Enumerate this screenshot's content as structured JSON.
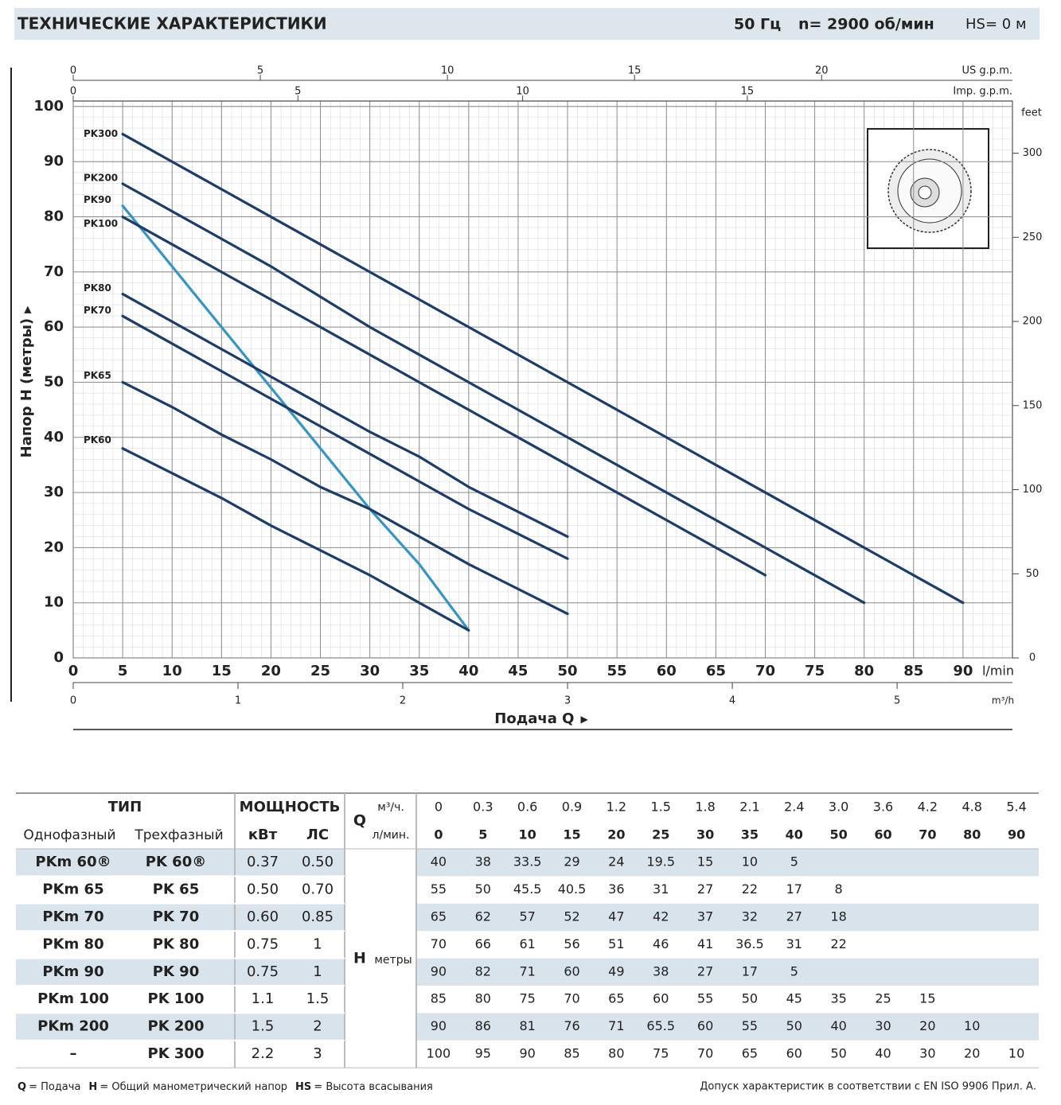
{
  "header": {
    "title": "ТЕХНИЧЕСКИЕ ХАРАКТЕРИСТИКИ",
    "frequency": "50 Гц",
    "speed": "n= 2900 об/мин",
    "suction": "HS= 0 м"
  },
  "chart_data": {
    "type": "line",
    "x": [
      5,
      10,
      15,
      20,
      25,
      30,
      35,
      40,
      50,
      60,
      70,
      80,
      90
    ],
    "xlim": [
      0,
      95
    ],
    "xticks": [
      0,
      5,
      10,
      15,
      20,
      25,
      30,
      35,
      40,
      45,
      50,
      55,
      60,
      65,
      70,
      75,
      80,
      85,
      90
    ],
    "xlabel": "l/min",
    "ylim": [
      0,
      101
    ],
    "yticks": [
      0,
      10,
      20,
      30,
      40,
      50,
      60,
      70,
      80,
      90,
      100
    ],
    "ylabel": "Напор H (метры)",
    "y2lim": [
      0,
      331
    ],
    "y2ticks": [
      0,
      50,
      100,
      150,
      200,
      250,
      300
    ],
    "y2label": "feet",
    "top_axes": [
      {
        "label": "US g.p.m.",
        "lim": [
          0,
          25.1
        ],
        "ticks": [
          0,
          5,
          10,
          15,
          20
        ]
      },
      {
        "label": "Imp. g.p.m.",
        "lim": [
          0,
          20.9
        ],
        "ticks": [
          0,
          5,
          10,
          15
        ]
      }
    ],
    "bottom_axis": {
      "label": "m³/h",
      "lim": [
        0,
        5.7
      ],
      "ticks": [
        0,
        1,
        2,
        3,
        4,
        5
      ]
    },
    "xtitle": "Подача Q",
    "grid": true,
    "series": [
      {
        "name": "PK300",
        "color": "#1b3d6b",
        "values": [
          95,
          90,
          85,
          80,
          75,
          70,
          65,
          60,
          50,
          40,
          30,
          20,
          10
        ]
      },
      {
        "name": "PK200",
        "color": "#1b3d6b",
        "values": [
          86,
          81,
          76,
          71,
          65.5,
          60,
          55,
          50,
          40,
          30,
          20,
          10,
          null
        ]
      },
      {
        "name": "PK90",
        "color": "#3596c6",
        "values": [
          82,
          71,
          60,
          49,
          38,
          27,
          17,
          5,
          null,
          null,
          null,
          null,
          null
        ]
      },
      {
        "name": "PK100",
        "color": "#1b3d6b",
        "values": [
          80,
          75,
          70,
          65,
          60,
          55,
          50,
          45,
          35,
          25,
          15,
          null,
          null
        ]
      },
      {
        "name": "PK80",
        "color": "#1b3d6b",
        "values": [
          66,
          61,
          56,
          51,
          46,
          41,
          36.5,
          31,
          22,
          null,
          null,
          null,
          null
        ]
      },
      {
        "name": "PK70",
        "color": "#1b3d6b",
        "values": [
          62,
          57,
          52,
          47,
          42,
          37,
          32,
          27,
          18,
          null,
          null,
          null,
          null
        ]
      },
      {
        "name": "PK65",
        "color": "#1b3d6b",
        "values": [
          50,
          45.5,
          40.5,
          36,
          31,
          27,
          22,
          17,
          8,
          null,
          null,
          null,
          null
        ]
      },
      {
        "name": "PK60",
        "color": "#1b3d6b",
        "values": [
          38,
          33.5,
          29,
          24,
          19.5,
          15,
          10,
          5,
          null,
          null,
          null,
          null,
          null
        ]
      }
    ]
  },
  "table": {
    "type_header": "ТИП",
    "power_header": "МОЩНОСТЬ",
    "columns": [
      "Однофазный",
      "Трехфазный",
      "кВт",
      "ЛС"
    ],
    "q_label": "Q",
    "q_unit_m3h": "м³/ч.",
    "q_unit_lmin": "л/мин.",
    "h_label": "H",
    "h_unit": "метры",
    "q_m3h": [
      "0",
      "0.3",
      "0.6",
      "0.9",
      "1.2",
      "1.5",
      "1.8",
      "2.1",
      "2.4",
      "3.0",
      "3.6",
      "4.2",
      "4.8",
      "5.4"
    ],
    "q_lmin": [
      "0",
      "5",
      "10",
      "15",
      "20",
      "25",
      "30",
      "35",
      "40",
      "50",
      "60",
      "70",
      "80",
      "90"
    ],
    "rows": [
      {
        "single": "PKm 60®",
        "three": "PK 60®",
        "kw": "0.37",
        "hp": "0.50",
        "h": [
          "40",
          "38",
          "33.5",
          "29",
          "24",
          "19.5",
          "15",
          "10",
          "5"
        ]
      },
      {
        "single": "PKm 65",
        "three": "PK 65",
        "kw": "0.50",
        "hp": "0.70",
        "h": [
          "55",
          "50",
          "45.5",
          "40.5",
          "36",
          "31",
          "27",
          "22",
          "17",
          "8"
        ]
      },
      {
        "single": "PKm 70",
        "three": "PK 70",
        "kw": "0.60",
        "hp": "0.85",
        "h": [
          "65",
          "62",
          "57",
          "52",
          "47",
          "42",
          "37",
          "32",
          "27",
          "18"
        ]
      },
      {
        "single": "PKm 80",
        "three": "PK 80",
        "kw": "0.75",
        "hp": "1",
        "h": [
          "70",
          "66",
          "61",
          "56",
          "51",
          "46",
          "41",
          "36.5",
          "31",
          "22"
        ]
      },
      {
        "single": "PKm 90",
        "three": "PK 90",
        "kw": "0.75",
        "hp": "1",
        "h": [
          "90",
          "82",
          "71",
          "60",
          "49",
          "38",
          "27",
          "17",
          "5"
        ]
      },
      {
        "single": "PKm 100",
        "three": "PK 100",
        "kw": "1.1",
        "hp": "1.5",
        "h": [
          "85",
          "80",
          "75",
          "70",
          "65",
          "60",
          "55",
          "50",
          "45",
          "35",
          "25",
          "15"
        ]
      },
      {
        "single": "PKm 200",
        "three": "PK 200",
        "kw": "1.5",
        "hp": "2",
        "h": [
          "90",
          "86",
          "81",
          "76",
          "71",
          "65.5",
          "60",
          "55",
          "50",
          "40",
          "30",
          "20",
          "10"
        ]
      },
      {
        "single": "–",
        "three": "PK 300",
        "kw": "2.2",
        "hp": "3",
        "h": [
          "100",
          "95",
          "90",
          "85",
          "80",
          "75",
          "70",
          "65",
          "60",
          "50",
          "40",
          "30",
          "20",
          "10"
        ]
      }
    ]
  },
  "footer": {
    "legend": [
      {
        "key": "Q",
        "text": "= Подача"
      },
      {
        "key": "H",
        "text": "= Общий манометрический напор"
      },
      {
        "key": "HS",
        "text": "= Высота всасывания"
      }
    ],
    "note": "Допуск характеристик в соответствии с EN ISO 9906 Прил. А."
  }
}
